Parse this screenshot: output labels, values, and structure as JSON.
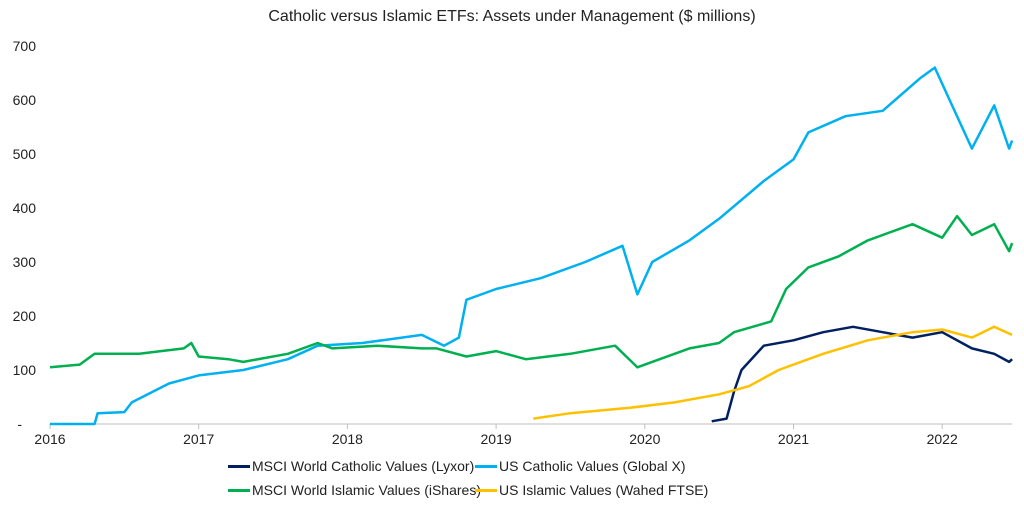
{
  "chart_data": {
    "type": "line",
    "title": "Catholic versus Islamic ETFs: Assets under Management ($ millions)",
    "xlabel": "",
    "ylabel": "",
    "xlim": [
      2016,
      2022.47
    ],
    "ylim": [
      0,
      700
    ],
    "x_ticks": [
      "2016",
      "2017",
      "2018",
      "2019",
      "2020",
      "2021",
      "2022"
    ],
    "y_ticks": [
      "-",
      "100",
      "200",
      "300",
      "400",
      "500",
      "600",
      "700"
    ],
    "grid": false,
    "legend_position": "bottom",
    "series": [
      {
        "name": "MSCI World Catholic Values (Lyxor)",
        "color": "#002060",
        "x": [
          2020.45,
          2020.55,
          2020.6,
          2020.65,
          2020.8,
          2021.0,
          2021.2,
          2021.4,
          2021.6,
          2021.8,
          2022.0,
          2022.2,
          2022.35,
          2022.45,
          2022.47
        ],
        "y": [
          5,
          10,
          60,
          100,
          145,
          155,
          170,
          180,
          170,
          160,
          170,
          140,
          130,
          115,
          120
        ]
      },
      {
        "name": "US Catholic Values (Global X)",
        "color": "#00B0F0",
        "x": [
          2016,
          2016.3,
          2016.32,
          2016.5,
          2016.55,
          2016.8,
          2017.0,
          2017.3,
          2017.6,
          2017.8,
          2018.1,
          2018.5,
          2018.65,
          2018.75,
          2018.8,
          2019.0,
          2019.3,
          2019.6,
          2019.85,
          2019.95,
          2020.05,
          2020.3,
          2020.5,
          2020.8,
          2021.0,
          2021.1,
          2021.35,
          2021.6,
          2021.85,
          2021.95,
          2022.05,
          2022.2,
          2022.35,
          2022.45,
          2022.47
        ],
        "y": [
          0,
          0,
          20,
          22,
          40,
          75,
          90,
          100,
          120,
          145,
          150,
          165,
          145,
          160,
          230,
          250,
          270,
          300,
          330,
          240,
          300,
          340,
          380,
          450,
          490,
          540,
          570,
          580,
          640,
          660,
          600,
          510,
          590,
          510,
          525
        ]
      },
      {
        "name": "MSCI World Islamic Values (iShares)",
        "color": "#00B050",
        "x": [
          2016,
          2016.2,
          2016.3,
          2016.6,
          2016.9,
          2016.95,
          2017.0,
          2017.2,
          2017.3,
          2017.6,
          2017.8,
          2017.9,
          2018.2,
          2018.5,
          2018.6,
          2018.8,
          2019.0,
          2019.2,
          2019.5,
          2019.8,
          2019.95,
          2020.1,
          2020.3,
          2020.5,
          2020.6,
          2020.85,
          2020.95,
          2021.1,
          2021.3,
          2021.5,
          2021.8,
          2022.0,
          2022.1,
          2022.2,
          2022.35,
          2022.45,
          2022.47
        ],
        "y": [
          105,
          110,
          130,
          130,
          140,
          150,
          125,
          120,
          115,
          130,
          150,
          140,
          145,
          140,
          140,
          125,
          135,
          120,
          130,
          145,
          105,
          120,
          140,
          150,
          170,
          190,
          250,
          290,
          310,
          340,
          370,
          345,
          385,
          350,
          370,
          320,
          335
        ]
      },
      {
        "name": "US Islamic Values (Wahed FTSE)",
        "color": "#FFC000",
        "x": [
          2019.25,
          2019.5,
          2019.9,
          2020.2,
          2020.5,
          2020.7,
          2020.9,
          2021.2,
          2021.5,
          2021.8,
          2022.0,
          2022.2,
          2022.35,
          2022.47
        ],
        "y": [
          10,
          20,
          30,
          40,
          55,
          70,
          100,
          130,
          155,
          170,
          175,
          160,
          180,
          165
        ]
      }
    ]
  }
}
